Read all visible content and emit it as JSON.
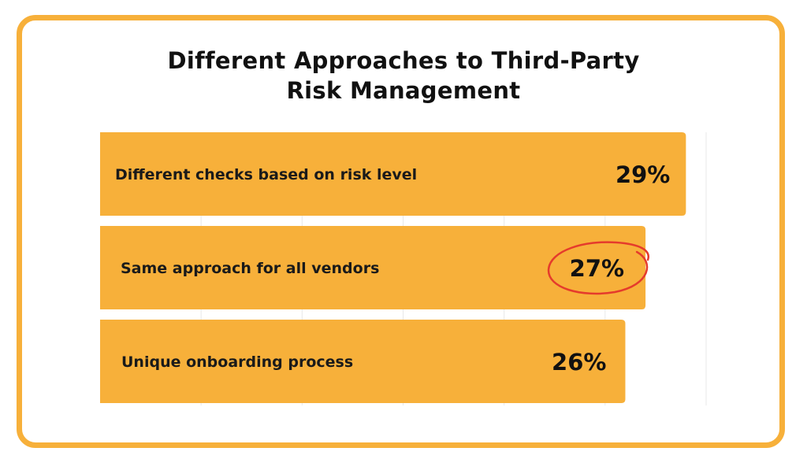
{
  "colors": {
    "border": "#f7b03a",
    "bar": "#f7b03a",
    "grid": "#e8e8e8",
    "highlight_circle": "#e53b2c",
    "text": "#111111"
  },
  "chart_data": {
    "type": "bar",
    "orientation": "horizontal",
    "title": "Different Approaches to Third-Party Risk Management",
    "title_lines": [
      "Different Approaches to Third-Party",
      "Risk Management"
    ],
    "categories": [
      "Different checks based on risk level",
      "Same approach for all vendors",
      "Unique onboarding process"
    ],
    "values": [
      29,
      27,
      26
    ],
    "value_labels": [
      "29%",
      "27%",
      "26%"
    ],
    "unit": "%",
    "xlim": [
      0,
      30
    ],
    "grid": true,
    "highlighted_category": "Same approach for all vendors"
  }
}
